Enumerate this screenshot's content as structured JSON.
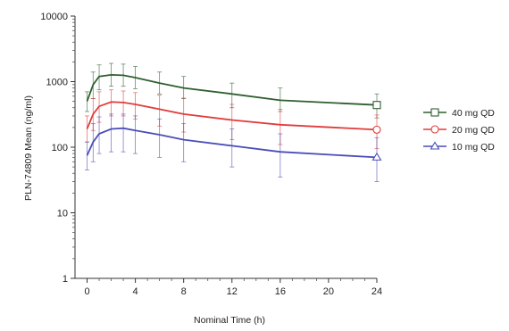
{
  "chart_data": {
    "type": "line",
    "xlabel": "Nominal Time (h)",
    "ylabel": "PLN-74809 Mean (ng/ml)",
    "xlim": [
      -1,
      24
    ],
    "ylim": [
      1,
      10000
    ],
    "yscale": "log",
    "x_ticks": [
      0,
      4,
      8,
      12,
      16,
      20,
      24
    ],
    "x_tick_labels": [
      "0",
      "4",
      "8",
      "12",
      "16",
      "20",
      "24"
    ],
    "y_ticks": [
      1,
      10,
      100,
      1000,
      10000
    ],
    "y_tick_labels": [
      "1",
      "10",
      "100",
      "1000",
      "10000"
    ],
    "legend_position": "right",
    "grid": false,
    "series": [
      {
        "name": "40 mg QD",
        "color": "#2f5f2f",
        "marker": "square",
        "x": [
          0,
          0.5,
          1,
          2,
          3,
          4,
          6,
          8,
          12,
          16,
          24
        ],
        "y": [
          500,
          900,
          1200,
          1270,
          1250,
          1150,
          950,
          800,
          650,
          520,
          440
        ],
        "err_low": [
          350,
          550,
          750,
          850,
          850,
          780,
          650,
          550,
          400,
          350,
          280
        ],
        "err_high": [
          700,
          1400,
          1800,
          1900,
          1850,
          1700,
          1400,
          1200,
          950,
          800,
          650
        ]
      },
      {
        "name": "20 mg QD",
        "color": "#e03c3c",
        "marker": "circle",
        "x": [
          0,
          0.5,
          1,
          2,
          3,
          4,
          6,
          8,
          12,
          16,
          24
        ],
        "y": [
          190,
          320,
          420,
          490,
          480,
          450,
          380,
          320,
          260,
          220,
          185
        ],
        "err_low": [
          120,
          180,
          240,
          300,
          300,
          270,
          210,
          170,
          130,
          110,
          95
        ],
        "err_high": [
          300,
          550,
          700,
          750,
          720,
          680,
          620,
          560,
          450,
          380,
          310
        ]
      },
      {
        "name": "10 mg QD",
        "color": "#4a4db8",
        "marker": "triangle",
        "x": [
          0,
          0.5,
          1,
          2,
          3,
          4,
          6,
          8,
          12,
          16,
          24
        ],
        "y": [
          75,
          120,
          160,
          190,
          195,
          180,
          155,
          130,
          105,
          85,
          70
        ],
        "err_low": [
          45,
          60,
          80,
          85,
          85,
          80,
          70,
          60,
          50,
          35,
          30
        ],
        "err_high": [
          120,
          230,
          290,
          320,
          320,
          300,
          270,
          230,
          190,
          160,
          140
        ]
      }
    ]
  }
}
